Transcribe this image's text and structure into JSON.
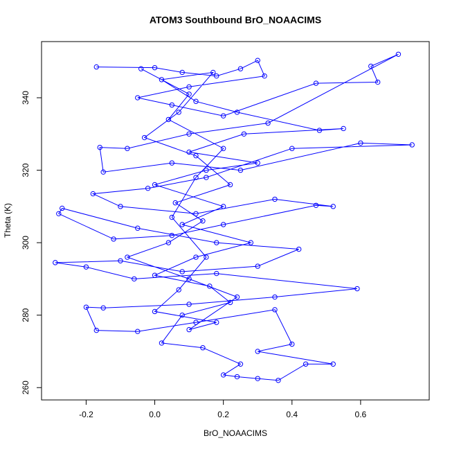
{
  "chart_data": {
    "type": "line",
    "title": "ATOM3 Southbound BrO_NOAACIMS",
    "x_label": "BrO_NOAACIMS",
    "y_label": "Theta (K)",
    "x": [
      -0.17,
      0.0,
      0.08,
      0.18,
      0.25,
      0.3,
      0.32,
      0.1,
      -0.05,
      0.05,
      0.2,
      0.47,
      0.65,
      0.63,
      0.71,
      0.33,
      0.1,
      -0.08,
      -0.16,
      -0.15,
      0.05,
      0.25,
      0.6,
      0.75,
      0.4,
      0.15,
      -0.02,
      -0.18,
      -0.1,
      0.12,
      0.35,
      0.52,
      0.47,
      0.2,
      0.05,
      -0.12,
      -0.28,
      -0.27,
      -0.05,
      0.18,
      0.42,
      0.3,
      0.08,
      -0.1,
      -0.29,
      -0.2,
      -0.06,
      0.18,
      0.59,
      0.35,
      0.1,
      -0.15,
      -0.2,
      -0.17,
      -0.05,
      0.12,
      0.35,
      0.4,
      0.3,
      0.52,
      0.44,
      0.36,
      0.3,
      0.24,
      0.2,
      0.25,
      0.14,
      0.02,
      0.08,
      0.22,
      0.16,
      0.0,
      0.12,
      0.28,
      0.08,
      0.2,
      0.0,
      0.15,
      0.3,
      0.1,
      0.26,
      0.55,
      0.48,
      0.24,
      0.12,
      0.02,
      0.17,
      0.07,
      -0.03,
      0.12,
      0.22,
      0.06,
      0.14,
      0.04,
      -0.08,
      0.1,
      0.24,
      0.1,
      0.18,
      0.0,
      0.07,
      0.15,
      0.05,
      0.12,
      0.2,
      0.04,
      0.1,
      -0.04
    ],
    "series": [
      {
        "name": "BrO_NOAACIMS",
        "color": "#0000ff",
        "values": [
          348.5,
          348.3,
          347,
          346,
          348,
          350.3,
          346,
          343,
          340,
          338,
          335,
          344,
          344.3,
          348.7,
          352,
          333,
          330,
          326,
          326.3,
          319.5,
          322,
          320,
          327.5,
          327,
          326,
          318,
          315,
          313.5,
          310,
          308,
          312,
          310,
          310.3,
          305,
          302,
          301,
          308,
          309.5,
          304,
          300,
          298.2,
          293.5,
          292,
          295,
          294.5,
          293.3,
          290,
          291.5,
          287.3,
          285,
          283,
          282,
          282.2,
          275.8,
          275.5,
          278,
          281.5,
          272,
          270,
          266.5,
          266.5,
          262,
          262.5,
          263,
          263.5,
          266.5,
          271,
          272.3,
          280,
          283.5,
          288,
          291,
          296,
          300,
          305,
          310,
          316,
          320,
          322,
          325,
          330,
          331.5,
          331,
          336,
          339,
          345,
          347,
          336,
          329,
          324,
          316,
          311,
          306,
          300,
          296,
          290,
          285,
          276,
          278,
          281,
          287,
          296,
          307,
          318,
          326,
          334,
          341,
          348
        ]
      }
    ],
    "xlim": [
      -0.33,
      0.8
    ],
    "ylim": [
      256.6,
      355.5
    ],
    "xticks": [
      -0.2,
      {
        "value": 0,
        "label": "0.0"
      },
      0.2,
      0.4,
      0.6
    ],
    "yticks": [
      260,
      280,
      300,
      320,
      340
    ]
  }
}
